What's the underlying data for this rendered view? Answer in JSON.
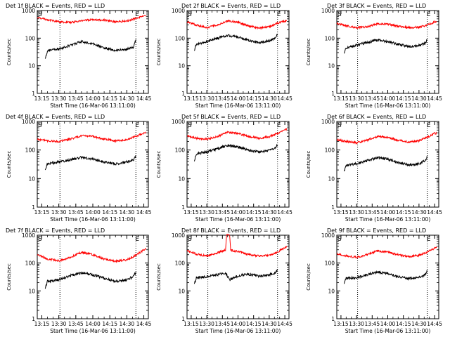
{
  "chart_data": [
    {
      "type": "line",
      "title": "Det 1f BLACK = Events, RED = LLD",
      "xlabel": "Start Time (16-Mar-06 13:11:00)",
      "ylabel": "Counts/sec",
      "ylim": [
        1,
        1000
      ],
      "yscale": "log",
      "xlim": [
        "13:11",
        "14:49"
      ],
      "x_ticks": [
        "13:15",
        "13:30",
        "13:45",
        "14:00",
        "14:15",
        "14:30",
        "14:45"
      ],
      "y_ticks": [
        "1",
        "10",
        "100",
        "1000"
      ],
      "vlines": [
        "13:31",
        "14:38"
      ],
      "markers": [
        "S",
        "E"
      ],
      "series": [
        {
          "name": "LLD",
          "color": "#ff0000",
          "x": [
            "13:11",
            "13:20",
            "13:30",
            "13:40",
            "13:50",
            "14:00",
            "14:10",
            "14:20",
            "14:30",
            "14:38",
            "14:45",
            "14:47"
          ],
          "y": [
            560,
            470,
            390,
            370,
            430,
            470,
            450,
            390,
            420,
            520,
            620,
            630
          ]
        },
        {
          "name": "Events",
          "color": "#000000",
          "x": [
            "13:18",
            "13:20",
            "13:30",
            "13:40",
            "13:50",
            "14:00",
            "14:10",
            "14:20",
            "14:30",
            "14:36",
            "14:38"
          ],
          "y": [
            18,
            36,
            40,
            55,
            75,
            62,
            45,
            36,
            40,
            48,
            90
          ]
        }
      ]
    },
    {
      "type": "line",
      "title": "Det 2f BLACK = Events, RED = LLD",
      "xlabel": "Start Time (16-Mar-06 13:11:00)",
      "ylabel": "Counts/sec",
      "ylim": [
        1,
        1000
      ],
      "yscale": "log",
      "xlim": [
        "13:11",
        "14:49"
      ],
      "x_ticks": [
        "13:15",
        "13:30",
        "13:45",
        "14:00",
        "14:15",
        "14:30",
        "14:45"
      ],
      "y_ticks": [
        "1",
        "10",
        "100",
        "1000"
      ],
      "vlines": [
        "13:31",
        "14:38"
      ],
      "markers": [
        "S",
        "E"
      ],
      "series": [
        {
          "name": "LLD",
          "color": "#ff0000",
          "x": [
            "13:11",
            "13:20",
            "13:30",
            "13:40",
            "13:50",
            "14:00",
            "14:10",
            "14:20",
            "14:30",
            "14:38",
            "14:45",
            "14:47"
          ],
          "y": [
            390,
            300,
            240,
            300,
            420,
            380,
            280,
            230,
            260,
            350,
            420,
            430
          ]
        },
        {
          "name": "Events",
          "color": "#000000",
          "x": [
            "13:18",
            "13:20",
            "13:30",
            "13:40",
            "13:50",
            "14:00",
            "14:10",
            "14:20",
            "14:30",
            "14:36",
            "14:38"
          ],
          "y": [
            35,
            60,
            75,
            100,
            125,
            110,
            85,
            68,
            80,
            100,
            140
          ]
        }
      ]
    },
    {
      "type": "line",
      "title": "Det 3f BLACK = Events, RED = LLD",
      "xlabel": "Start Time (16-Mar-06 13:11:00)",
      "ylabel": "Counts/sec",
      "ylim": [
        1,
        1000
      ],
      "yscale": "log",
      "xlim": [
        "13:11",
        "14:49"
      ],
      "x_ticks": [
        "13:15",
        "13:30",
        "13:45",
        "14:00",
        "14:15",
        "14:30",
        "14:45"
      ],
      "y_ticks": [
        "1",
        "10",
        "100",
        "1000"
      ],
      "vlines": [
        "13:31",
        "14:38"
      ],
      "markers": [
        "S",
        "E"
      ],
      "series": [
        {
          "name": "LLD",
          "color": "#ff0000",
          "x": [
            "13:11",
            "13:20",
            "13:30",
            "13:40",
            "13:50",
            "14:00",
            "14:10",
            "14:20",
            "14:30",
            "14:38",
            "14:45",
            "14:47"
          ],
          "y": [
            340,
            280,
            240,
            260,
            330,
            320,
            270,
            240,
            250,
            300,
            380,
            390
          ]
        },
        {
          "name": "Events",
          "color": "#000000",
          "x": [
            "13:18",
            "13:20",
            "13:30",
            "13:40",
            "13:50",
            "14:00",
            "14:10",
            "14:20",
            "14:30",
            "14:36",
            "14:38"
          ],
          "y": [
            28,
            45,
            55,
            70,
            85,
            75,
            60,
            50,
            55,
            65,
            90
          ]
        }
      ]
    },
    {
      "type": "line",
      "title": "Det 4f BLACK = Events, RED = LLD",
      "xlabel": "Start Time (16-Mar-06 13:11:00)",
      "ylabel": "Counts/sec",
      "ylim": [
        1,
        1000
      ],
      "yscale": "log",
      "xlim": [
        "13:11",
        "14:49"
      ],
      "x_ticks": [
        "13:15",
        "13:30",
        "13:45",
        "14:00",
        "14:15",
        "14:30",
        "14:45"
      ],
      "y_ticks": [
        "1",
        "10",
        "100",
        "1000"
      ],
      "vlines": [
        "13:31",
        "14:38"
      ],
      "markers": [
        "S",
        "E"
      ],
      "series": [
        {
          "name": "LLD",
          "color": "#ff0000",
          "x": [
            "13:11",
            "13:20",
            "13:30",
            "13:40",
            "13:50",
            "14:00",
            "14:10",
            "14:20",
            "14:30",
            "14:38",
            "14:45",
            "14:47"
          ],
          "y": [
            240,
            210,
            200,
            240,
            320,
            300,
            240,
            210,
            230,
            300,
            400,
            410
          ]
        },
        {
          "name": "Events",
          "color": "#000000",
          "x": [
            "13:18",
            "13:20",
            "13:30",
            "13:40",
            "13:50",
            "14:00",
            "14:10",
            "14:20",
            "14:30",
            "14:36",
            "14:38"
          ],
          "y": [
            20,
            33,
            38,
            45,
            55,
            48,
            38,
            33,
            38,
            45,
            60
          ]
        }
      ]
    },
    {
      "type": "line",
      "title": "Det 5f BLACK = Events, RED = LLD",
      "xlabel": "Start Time (16-Mar-06 13:11:00)",
      "ylabel": "Counts/sec",
      "ylim": [
        1,
        1000
      ],
      "yscale": "log",
      "xlim": [
        "13:11",
        "14:49"
      ],
      "x_ticks": [
        "13:15",
        "13:30",
        "13:45",
        "14:00",
        "14:15",
        "14:30",
        "14:45"
      ],
      "y_ticks": [
        "1",
        "10",
        "100",
        "1000"
      ],
      "vlines": [
        "13:31",
        "14:38"
      ],
      "markers": [
        "S",
        "E"
      ],
      "series": [
        {
          "name": "LLD",
          "color": "#ff0000",
          "x": [
            "13:11",
            "13:20",
            "13:30",
            "13:40",
            "13:50",
            "14:00",
            "14:10",
            "14:20",
            "14:30",
            "14:38",
            "14:45",
            "14:47"
          ],
          "y": [
            310,
            260,
            240,
            300,
            420,
            380,
            300,
            260,
            290,
            380,
            520,
            530
          ]
        },
        {
          "name": "Events",
          "color": "#000000",
          "x": [
            "13:18",
            "13:20",
            "13:30",
            "13:40",
            "13:50",
            "14:00",
            "14:10",
            "14:20",
            "14:30",
            "14:36",
            "14:38"
          ],
          "y": [
            40,
            75,
            85,
            110,
            145,
            125,
            100,
            85,
            95,
            115,
            150
          ]
        }
      ]
    },
    {
      "type": "line",
      "title": "Det 6f BLACK = Events, RED = LLD",
      "xlabel": "Start Time (16-Mar-06 13:11:00)",
      "ylabel": "Counts/sec",
      "ylim": [
        1,
        1000
      ],
      "yscale": "log",
      "xlim": [
        "13:11",
        "14:49"
      ],
      "x_ticks": [
        "13:15",
        "13:30",
        "13:45",
        "14:00",
        "14:15",
        "14:30",
        "14:45"
      ],
      "y_ticks": [
        "1",
        "10",
        "100",
        "1000"
      ],
      "vlines": [
        "13:31",
        "14:38"
      ],
      "markers": [
        "S",
        "E"
      ],
      "series": [
        {
          "name": "LLD",
          "color": "#ff0000",
          "x": [
            "13:11",
            "13:20",
            "13:30",
            "13:40",
            "13:50",
            "14:00",
            "14:10",
            "14:20",
            "14:30",
            "14:38",
            "14:45",
            "14:47"
          ],
          "y": [
            230,
            200,
            180,
            220,
            300,
            280,
            220,
            190,
            210,
            280,
            380,
            390
          ]
        },
        {
          "name": "Events",
          "color": "#000000",
          "x": [
            "13:18",
            "13:20",
            "13:30",
            "13:40",
            "13:50",
            "14:00",
            "14:10",
            "14:20",
            "14:30",
            "14:36",
            "14:38"
          ],
          "y": [
            18,
            30,
            33,
            42,
            55,
            48,
            36,
            30,
            33,
            42,
            60
          ]
        }
      ]
    },
    {
      "type": "line",
      "title": "Det 7f BLACK = Events, RED = LLD",
      "xlabel": "Start Time (16-Mar-06 13:11:00)",
      "ylabel": "Counts/sec",
      "ylim": [
        1,
        1000
      ],
      "yscale": "log",
      "xlim": [
        "13:11",
        "14:49"
      ],
      "x_ticks": [
        "13:15",
        "13:30",
        "13:45",
        "14:00",
        "14:15",
        "14:30",
        "14:45"
      ],
      "y_ticks": [
        "1",
        "10",
        "100",
        "1000"
      ],
      "vlines": [
        "13:31",
        "14:38"
      ],
      "markers": [
        "S",
        "E"
      ],
      "series": [
        {
          "name": "LLD",
          "color": "#ff0000",
          "x": [
            "13:11",
            "13:20",
            "13:30",
            "13:40",
            "13:50",
            "14:00",
            "14:10",
            "14:20",
            "14:30",
            "14:38",
            "14:45",
            "14:47"
          ],
          "y": [
            200,
            140,
            120,
            160,
            240,
            200,
            140,
            115,
            130,
            190,
            300,
            310
          ]
        },
        {
          "name": "Events",
          "color": "#000000",
          "x": [
            "13:18",
            "13:20",
            "13:30",
            "13:40",
            "13:50",
            "14:00",
            "14:10",
            "14:20",
            "14:30",
            "14:36",
            "14:38"
          ],
          "y": [
            12,
            22,
            25,
            35,
            45,
            38,
            28,
            22,
            25,
            33,
            48
          ]
        }
      ]
    },
    {
      "type": "line",
      "title": "Det 8f BLACK = Events, RED = LLD",
      "xlabel": "Start Time (16-Mar-06 13:11:00)",
      "ylabel": "Counts/sec",
      "ylim": [
        1,
        1000
      ],
      "yscale": "log",
      "xlim": [
        "13:11",
        "14:49"
      ],
      "x_ticks": [
        "13:15",
        "13:30",
        "13:45",
        "14:00",
        "14:15",
        "14:30",
        "14:45"
      ],
      "y_ticks": [
        "1",
        "10",
        "100",
        "1000"
      ],
      "vlines": [
        "13:31",
        "14:38"
      ],
      "markers": [
        "S",
        "E"
      ],
      "series": [
        {
          "name": "LLD",
          "color": "#ff0000",
          "x": [
            "13:11",
            "13:20",
            "13:30",
            "13:40",
            "13:48",
            "13:49",
            "13:52",
            "13:53",
            "14:00",
            "14:10",
            "14:20",
            "14:30",
            "14:38",
            "14:45",
            "14:47"
          ],
          "y": [
            280,
            210,
            180,
            230,
            300,
            1000,
            1000,
            290,
            260,
            200,
            180,
            190,
            250,
            360,
            370
          ]
        },
        {
          "name": "Events",
          "color": "#000000",
          "x": [
            "13:18",
            "13:20",
            "13:30",
            "13:40",
            "13:48",
            "13:52",
            "14:00",
            "14:10",
            "14:20",
            "14:30",
            "14:36",
            "14:38"
          ],
          "y": [
            18,
            30,
            32,
            38,
            45,
            25,
            35,
            40,
            34,
            38,
            45,
            60
          ]
        }
      ]
    },
    {
      "type": "line",
      "title": "Det 9f BLACK = Events, RED = LLD",
      "xlabel": "Start Time (16-Mar-06 13:11:00)",
      "ylabel": "Counts/sec",
      "ylim": [
        1,
        1000
      ],
      "yscale": "log",
      "xlim": [
        "13:11",
        "14:49"
      ],
      "x_ticks": [
        "13:15",
        "13:30",
        "13:45",
        "14:00",
        "14:15",
        "14:30",
        "14:45"
      ],
      "y_ticks": [
        "1",
        "10",
        "100",
        "1000"
      ],
      "vlines": [
        "13:31",
        "14:38"
      ],
      "markers": [
        "S",
        "E"
      ],
      "series": [
        {
          "name": "LLD",
          "color": "#ff0000",
          "x": [
            "13:11",
            "13:20",
            "13:30",
            "13:40",
            "13:50",
            "14:00",
            "14:10",
            "14:20",
            "14:30",
            "14:38",
            "14:45",
            "14:47"
          ],
          "y": [
            220,
            180,
            160,
            200,
            270,
            250,
            200,
            170,
            190,
            250,
            340,
            350
          ]
        },
        {
          "name": "Events",
          "color": "#000000",
          "x": [
            "13:18",
            "13:20",
            "13:30",
            "13:40",
            "13:50",
            "14:00",
            "14:10",
            "14:20",
            "14:30",
            "14:36",
            "14:38"
          ],
          "y": [
            18,
            28,
            30,
            38,
            48,
            42,
            33,
            28,
            30,
            38,
            55
          ]
        }
      ]
    }
  ]
}
